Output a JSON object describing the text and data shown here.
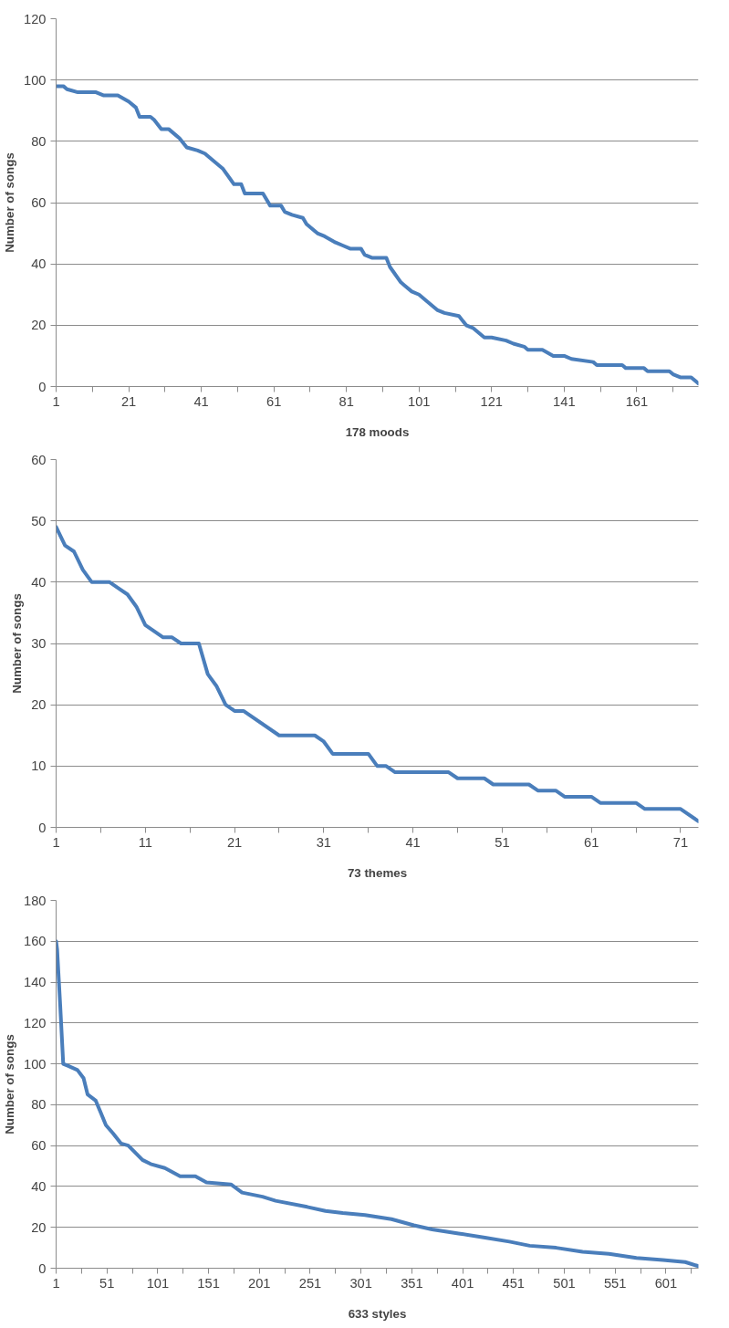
{
  "chart_data": [
    {
      "type": "line",
      "xlabel": "178 moods",
      "ylabel": "Number of songs",
      "grid": "y",
      "xlim": [
        1,
        178
      ],
      "ylim": [
        0,
        120
      ],
      "yticks": [
        0,
        20,
        40,
        60,
        80,
        100,
        120
      ],
      "xticks": [
        1,
        {
          "value": 11,
          "label": null
        },
        21,
        {
          "value": 31,
          "label": null
        },
        41,
        {
          "value": 51,
          "label": null
        },
        61,
        {
          "value": 71,
          "label": null
        },
        81,
        {
          "value": 91,
          "label": null
        },
        101,
        {
          "value": 111,
          "label": null
        },
        121,
        {
          "value": 131,
          "label": null
        },
        141,
        {
          "value": 151,
          "label": null
        },
        161,
        {
          "value": 171,
          "label": null
        }
      ],
      "series": [
        {
          "color": "#4a7ebb",
          "x": [
            1,
            3,
            4,
            7,
            12,
            14,
            18,
            21,
            23,
            24,
            27,
            28,
            30,
            32,
            34,
            35,
            37,
            40,
            42,
            44,
            47,
            50,
            52,
            53,
            58,
            60,
            63,
            64,
            66,
            69,
            70,
            73,
            75,
            78,
            80,
            82,
            85,
            86,
            88,
            92,
            93,
            96,
            97,
            99,
            101,
            103,
            106,
            108,
            112,
            114,
            116,
            119,
            121,
            125,
            127,
            130,
            131,
            135,
            138,
            141,
            143,
            149,
            150,
            157,
            158,
            163,
            164,
            170,
            171,
            173,
            176,
            178
          ],
          "values": [
            98,
            98,
            97,
            96,
            96,
            95,
            95,
            93,
            91,
            88,
            88,
            87,
            84,
            84,
            82,
            81,
            78,
            77,
            76,
            74,
            71,
            66,
            66,
            63,
            63,
            59,
            59,
            57,
            56,
            55,
            53,
            50,
            49,
            47,
            46,
            45,
            45,
            43,
            42,
            42,
            39,
            34,
            33,
            31,
            30,
            28,
            25,
            24,
            23,
            20,
            19,
            16,
            16,
            15,
            14,
            13,
            12,
            12,
            10,
            10,
            9,
            8,
            7,
            7,
            6,
            6,
            5,
            5,
            4,
            3,
            3,
            1
          ]
        }
      ]
    },
    {
      "type": "line",
      "xlabel": "73 themes",
      "ylabel": "Number of songs",
      "grid": "y",
      "xlim": [
        1,
        73
      ],
      "ylim": [
        0,
        60
      ],
      "yticks": [
        0,
        10,
        20,
        30,
        40,
        50,
        60
      ],
      "xticks": [
        1,
        {
          "value": 6,
          "label": null
        },
        11,
        {
          "value": 16,
          "label": null
        },
        21,
        {
          "value": 26,
          "label": null
        },
        31,
        {
          "value": 36,
          "label": null
        },
        41,
        {
          "value": 46,
          "label": null
        },
        51,
        {
          "value": 56,
          "label": null
        },
        61,
        {
          "value": 66,
          "label": null
        },
        71
      ],
      "series": [
        {
          "color": "#4a7ebb",
          "x": [
            1,
            2,
            3,
            4,
            5,
            7,
            8,
            9,
            10,
            11,
            13,
            14,
            15,
            17,
            18,
            19,
            20,
            21,
            22,
            26,
            30,
            31,
            32,
            36,
            37,
            38,
            39,
            45,
            46,
            49,
            50,
            54,
            55,
            57,
            58,
            61,
            62,
            66,
            67,
            71,
            73
          ],
          "values": [
            49,
            46,
            45,
            42,
            40,
            40,
            39,
            38,
            36,
            33,
            31,
            31,
            30,
            30,
            25,
            23,
            20,
            19,
            19,
            15,
            15,
            14,
            12,
            12,
            10,
            10,
            9,
            9,
            8,
            8,
            7,
            7,
            6,
            6,
            5,
            5,
            4,
            4,
            3,
            3,
            1
          ]
        }
      ]
    },
    {
      "type": "line",
      "xlabel": "633 styles",
      "ylabel": "Number of songs",
      "grid": "y",
      "xlim": [
        1,
        633
      ],
      "ylim": [
        0,
        180
      ],
      "yticks": [
        0,
        20,
        40,
        60,
        80,
        100,
        120,
        140,
        160,
        180
      ],
      "xticks": [
        1,
        {
          "value": 26,
          "label": null
        },
        51,
        {
          "value": 76,
          "label": null
        },
        101,
        {
          "value": 126,
          "label": null
        },
        151,
        {
          "value": 176,
          "label": null
        },
        201,
        {
          "value": 226,
          "label": null
        },
        251,
        {
          "value": 276,
          "label": null
        },
        301,
        {
          "value": 326,
          "label": null
        },
        351,
        {
          "value": 376,
          "label": null
        },
        401,
        {
          "value": 426,
          "label": null
        },
        451,
        {
          "value": 476,
          "label": null
        },
        501,
        {
          "value": 526,
          "label": null
        },
        551,
        {
          "value": 576,
          "label": null
        },
        601,
        {
          "value": 626,
          "label": null
        }
      ],
      "series": [
        {
          "color": "#4a7ebb",
          "x": [
            1,
            2,
            5,
            8,
            13,
            22,
            28,
            32,
            40,
            45,
            50,
            57,
            65,
            72,
            80,
            86,
            94,
            108,
            123,
            138,
            149,
            173,
            184,
            204,
            217,
            248,
            266,
            283,
            305,
            331,
            353,
            371,
            397,
            423,
            447,
            467,
            493,
            519,
            545,
            572,
            598,
            620,
            633
          ],
          "values": [
            160,
            156,
            129,
            100,
            99,
            97,
            93,
            85,
            82,
            76,
            70,
            66,
            61,
            60,
            56,
            53,
            51,
            49,
            45,
            45,
            42,
            41,
            37,
            35,
            33,
            30,
            28,
            27,
            26,
            24,
            21,
            19,
            17,
            15,
            13,
            11,
            10,
            8,
            7,
            5,
            4,
            3,
            1
          ]
        }
      ]
    }
  ]
}
